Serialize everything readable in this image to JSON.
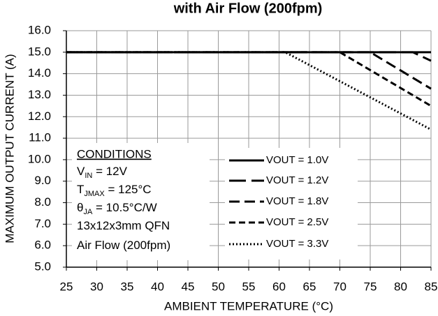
{
  "chart_data": {
    "type": "line",
    "title": "with Air Flow (200fpm)",
    "xlabel": "AMBIENT TEMPERATURE (°C)",
    "ylabel": "MAXIMUM OUTPUT CURRENT (A)",
    "xlim": [
      25,
      85
    ],
    "xticks": [
      25,
      30,
      35,
      40,
      45,
      50,
      55,
      60,
      65,
      70,
      75,
      80,
      85
    ],
    "ylim": [
      5,
      16
    ],
    "yticks": [
      {
        "value": 5,
        "label": "5.0"
      },
      {
        "value": 6,
        "label": "6.0"
      },
      {
        "value": 7,
        "label": "7.0"
      },
      {
        "value": 8,
        "label": "8.0"
      },
      {
        "value": 9,
        "label": "9.0"
      },
      {
        "value": 10,
        "label": "10.0"
      },
      {
        "value": 11,
        "label": "11.0"
      },
      {
        "value": 12,
        "label": "12.0"
      },
      {
        "value": 13,
        "label": "13.0"
      },
      {
        "value": 14,
        "label": "14.0"
      },
      {
        "value": 15,
        "label": "15.0"
      },
      {
        "value": 16,
        "label": "16.0"
      }
    ],
    "grid": true,
    "series": [
      {
        "name": "VOUT = 1.0V",
        "color": "#000000",
        "dash": "none",
        "x": [
          25,
          85
        ],
        "values": [
          15,
          15
        ]
      },
      {
        "name": "VOUT = 1.2V",
        "color": "#000000",
        "dash": "24,8",
        "x": [
          25,
          82,
          85
        ],
        "values": [
          15,
          15,
          14.6
        ]
      },
      {
        "name": "VOUT = 1.8V",
        "color": "#000000",
        "dash": "15,7",
        "x": [
          25,
          75,
          85
        ],
        "values": [
          15,
          15,
          13.3
        ]
      },
      {
        "name": "VOUT = 2.5V",
        "color": "#000000",
        "dash": "9,5",
        "x": [
          25,
          70,
          85
        ],
        "values": [
          15,
          15,
          12.5
        ]
      },
      {
        "name": "VOUT = 3.3V",
        "color": "#000000",
        "dash": "2,3",
        "x": [
          25,
          61,
          85
        ],
        "values": [
          15,
          15,
          11.4
        ]
      }
    ],
    "conditions": {
      "title": "CONDITIONS",
      "lines": [
        [
          "V",
          "IN",
          " = 12V"
        ],
        [
          "T",
          "JMAX",
          " = 125°C"
        ],
        [
          "θ",
          "JA",
          " = 10.5°C/W"
        ],
        [
          "13x12x3mm QFN"
        ],
        [
          "Air Flow (200fpm)"
        ]
      ]
    }
  }
}
